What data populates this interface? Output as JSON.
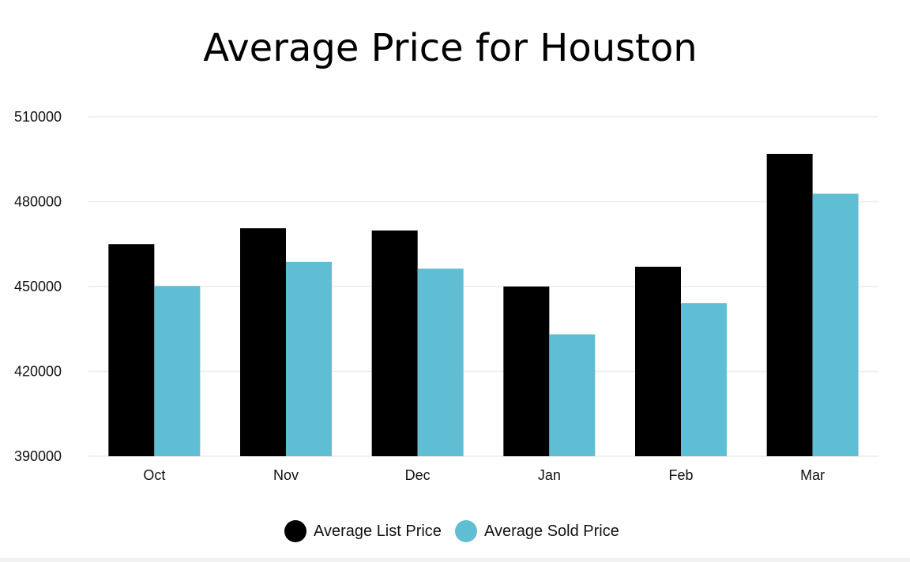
{
  "chart_data": {
    "type": "bar",
    "title": "Average Price for Houston",
    "categories": [
      "Oct",
      "Nov",
      "Dec",
      "Jan",
      "Feb",
      "Mar"
    ],
    "series": [
      {
        "name": "Average List Price",
        "color": "#000000",
        "values": [
          465000,
          470600,
          469800,
          450000,
          457000,
          496900
        ]
      },
      {
        "name": "Average Sold Price",
        "color": "#5fbed3",
        "values": [
          450200,
          458700,
          456300,
          433100,
          444100,
          482800
        ]
      }
    ],
    "yticks": [
      390000,
      420000,
      450000,
      480000,
      510000
    ],
    "ytick_labels": [
      "390000",
      "420000",
      "450000",
      "480000",
      "510000"
    ],
    "ylim": [
      390000,
      510000
    ],
    "xlabel": "",
    "ylabel": "",
    "grid": true,
    "legend": "bottom-center"
  }
}
